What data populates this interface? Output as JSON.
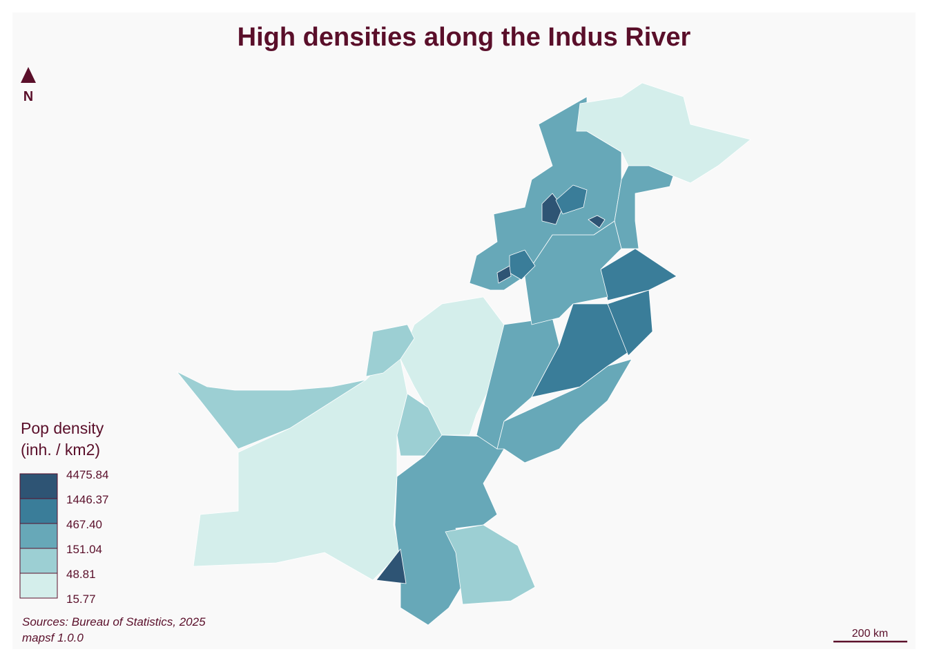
{
  "header": {
    "title": "High densities along the Indus River"
  },
  "north_arrow": {
    "label": "N"
  },
  "legend": {
    "title": [
      "Pop density",
      "(inh. / km2)"
    ],
    "breaks": [
      "4475.84",
      "1446.37",
      "467.40",
      "151.04",
      "48.81",
      "15.77"
    ],
    "colors": [
      "#2e5474",
      "#3a7d99",
      "#67a8b8",
      "#9ccfd3",
      "#d4eeeb"
    ]
  },
  "credits": [
    "Sources: Bureau of Statistics, 2025",
    "mapsf 1.0.0"
  ],
  "scale_bar": {
    "label": "200 km"
  }
}
